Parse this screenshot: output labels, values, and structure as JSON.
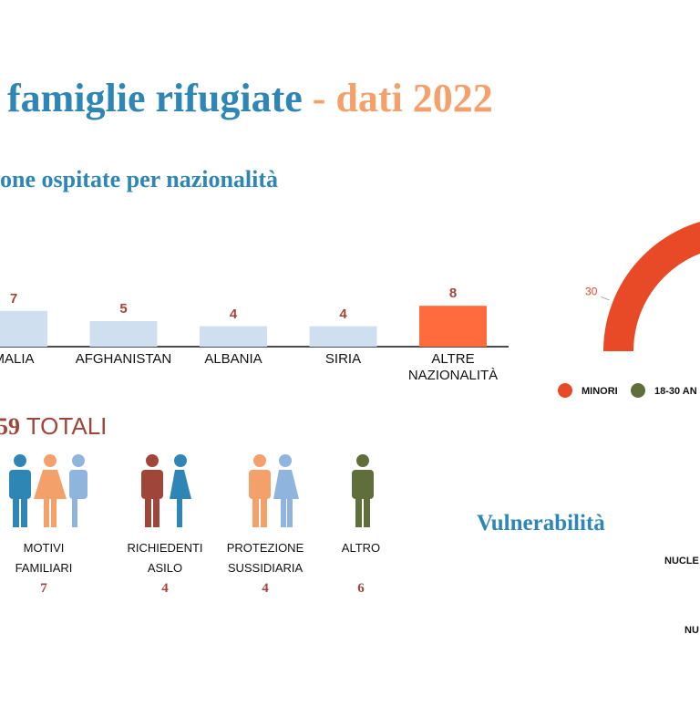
{
  "title": {
    "main": "famiglie rifugiate",
    "sep": "-",
    "year": "dati 2022"
  },
  "chart_data": [
    {
      "type": "bar",
      "title": "one ospitate per nazionalità",
      "categories": [
        "MALIA",
        "AFGHANISTAN",
        "ALBANIA",
        "SIRIA",
        "ALTRE NAZIONALITÀ"
      ],
      "values": [
        7,
        5,
        4,
        4,
        8
      ],
      "colors": [
        "#cfdff0",
        "#cfdff0",
        "#cfdff0",
        "#cfdff0",
        "#ff6b3d"
      ]
    },
    {
      "type": "donut",
      "categories": [
        "MINORI",
        "18-30 AN"
      ],
      "values": [
        30,
        null
      ],
      "colors": [
        "#e84a27",
        "#5f6e3a"
      ]
    }
  ],
  "totals": {
    "value": 59,
    "label": "TOTALI"
  },
  "status": [
    {
      "label": "MOTIVI FAMILIARI",
      "value": 7
    },
    {
      "label": "RICHIEDENTI ASILO",
      "value": 4
    },
    {
      "label": "PROTEZIONE SUSSIDIARIA",
      "value": 4
    },
    {
      "label": "ALTRO",
      "value": 6
    }
  ],
  "vulnerabilita": {
    "title": "Vulnerabilità",
    "rows": [
      "NUCLE",
      "NU"
    ]
  }
}
